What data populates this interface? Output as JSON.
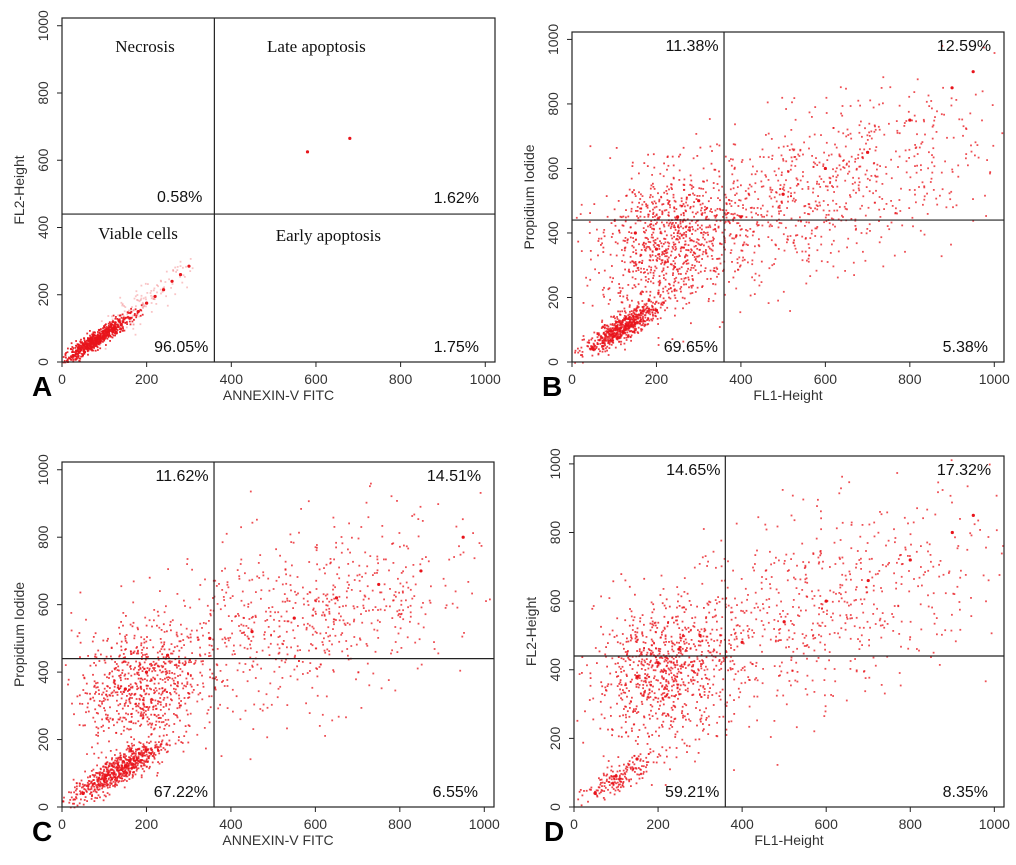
{
  "chart_data": [
    {
      "type": "scatter",
      "panel_label": "A",
      "xlabel": "ANNEXIN-V FITC",
      "ylabel": "FL2-Height",
      "xlim": [
        0,
        1023
      ],
      "ylim": [
        0,
        1023
      ],
      "x_ticks": [
        "0",
        "200",
        "400",
        "600",
        "800",
        "1000"
      ],
      "y_ticks": [
        "0",
        "200",
        "400",
        "600",
        "800",
        "1000"
      ],
      "gate": {
        "x": 360,
        "y": 440
      },
      "quadrant_labels": {
        "upper_left": "Necrosis",
        "upper_right": "Late apoptosis",
        "lower_left": "Viable cells",
        "lower_right": "Early apoptosis"
      },
      "quadrant_percentages": {
        "upper_left": "0.58%",
        "upper_right": "1.62%",
        "lower_left": "96.05%",
        "lower_right": "1.75%"
      },
      "point_color": "#e8141b",
      "points": [
        [
          40,
          30
        ],
        [
          60,
          40
        ],
        [
          80,
          55
        ],
        [
          100,
          70
        ],
        [
          120,
          90
        ],
        [
          140,
          110
        ],
        [
          160,
          130
        ],
        [
          180,
          150
        ],
        [
          200,
          175
        ],
        [
          220,
          195
        ],
        [
          240,
          215
        ],
        [
          260,
          240
        ],
        [
          280,
          260
        ],
        [
          300,
          285
        ],
        [
          580,
          625
        ],
        [
          680,
          665
        ]
      ]
    },
    {
      "type": "scatter",
      "panel_label": "B",
      "xlabel": "FL1-Height",
      "ylabel": "Propidium Iodide",
      "xlim": [
        0,
        1023
      ],
      "ylim": [
        0,
        1023
      ],
      "x_ticks": [
        "0",
        "200",
        "400",
        "600",
        "800",
        "1000"
      ],
      "y_ticks": [
        "0",
        "200",
        "400",
        "600",
        "800",
        "1000"
      ],
      "gate": {
        "x": 360,
        "y": 440
      },
      "quadrant_percentages": {
        "upper_left": "11.38%",
        "upper_right": "12.59%",
        "lower_left": "69.65%",
        "lower_right": "5.38%"
      },
      "point_color": "#e8141b",
      "points": [
        [
          50,
          40
        ],
        [
          100,
          80
        ],
        [
          150,
          120
        ],
        [
          200,
          160
        ],
        [
          150,
          400
        ],
        [
          200,
          350
        ],
        [
          250,
          450
        ],
        [
          300,
          500
        ],
        [
          400,
          450
        ],
        [
          500,
          520
        ],
        [
          600,
          600
        ],
        [
          700,
          650
        ],
        [
          800,
          750
        ],
        [
          900,
          850
        ],
        [
          950,
          900
        ]
      ]
    },
    {
      "type": "scatter",
      "panel_label": "C",
      "xlabel": "ANNEXIN-V FITC",
      "ylabel": "Propidium Iodide",
      "xlim": [
        0,
        1023
      ],
      "ylim": [
        0,
        1023
      ],
      "x_ticks": [
        "0",
        "200",
        "400",
        "600",
        "800",
        "1000"
      ],
      "y_ticks": [
        "0",
        "200",
        "400",
        "600",
        "800",
        "1000"
      ],
      "gate": {
        "x": 360,
        "y": 440
      },
      "quadrant_percentages": {
        "upper_left": "11.62%",
        "upper_right": "14.51%",
        "lower_left": "67.22%",
        "lower_right": "6.55%"
      },
      "point_color": "#e8141b",
      "points": [
        [
          50,
          40
        ],
        [
          100,
          80
        ],
        [
          150,
          120
        ],
        [
          200,
          170
        ],
        [
          150,
          350
        ],
        [
          200,
          400
        ],
        [
          250,
          450
        ],
        [
          350,
          500
        ],
        [
          450,
          520
        ],
        [
          550,
          560
        ],
        [
          650,
          620
        ],
        [
          750,
          660
        ],
        [
          850,
          700
        ],
        [
          950,
          800
        ]
      ]
    },
    {
      "type": "scatter",
      "panel_label": "D",
      "xlabel": "FL1-Height",
      "ylabel": "FL2-Height",
      "xlim": [
        0,
        1023
      ],
      "ylim": [
        0,
        1023
      ],
      "x_ticks": [
        "0",
        "200",
        "400",
        "600",
        "800",
        "1000"
      ],
      "y_ticks": [
        "0",
        "200",
        "400",
        "600",
        "800",
        "1000"
      ],
      "gate": {
        "x": 360,
        "y": 440
      },
      "quadrant_percentages": {
        "upper_left": "14.65%",
        "upper_right": "17.32%",
        "lower_left": "59.21%",
        "lower_right": "8.35%"
      },
      "point_color": "#e8141b",
      "points": [
        [
          50,
          40
        ],
        [
          100,
          90
        ],
        [
          150,
          140
        ],
        [
          150,
          380
        ],
        [
          200,
          420
        ],
        [
          250,
          460
        ],
        [
          300,
          500
        ],
        [
          400,
          480
        ],
        [
          500,
          540
        ],
        [
          600,
          600
        ],
        [
          700,
          660
        ],
        [
          800,
          720
        ],
        [
          900,
          800
        ],
        [
          950,
          850
        ]
      ]
    }
  ]
}
